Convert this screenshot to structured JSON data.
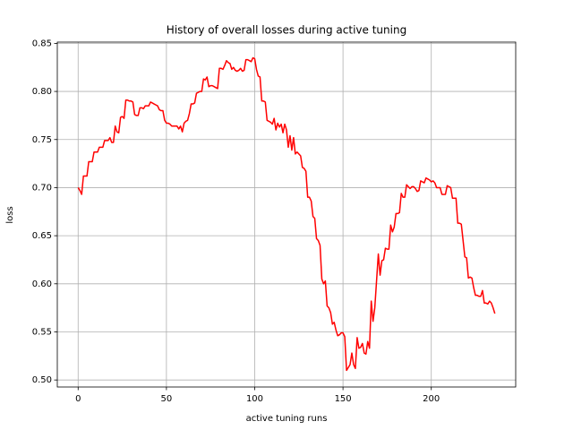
{
  "chart_data": {
    "type": "line",
    "title": "History of overall losses during active tuning",
    "xlabel": "active tuning runs",
    "ylabel": "loss",
    "color": "#ff0000",
    "grid": true,
    "xlim": [
      -11.8,
      247.8
    ],
    "ylim": [
      0.4927,
      0.8513
    ],
    "xticks": [
      0,
      50,
      100,
      150,
      200
    ],
    "yticks": [
      {
        "value": 0.5,
        "label": "0.50"
      },
      0.55,
      {
        "value": 0.6,
        "label": "0.60"
      },
      0.65,
      {
        "value": 0.7,
        "label": "0.70"
      },
      0.75,
      {
        "value": 0.8,
        "label": "0.80"
      },
      0.85
    ],
    "x": [
      0,
      1,
      2,
      3,
      4,
      5,
      6,
      7,
      8,
      9,
      10,
      11,
      12,
      13,
      14,
      15,
      16,
      17,
      18,
      19,
      20,
      21,
      22,
      23,
      24,
      25,
      26,
      27,
      28,
      29,
      30,
      31,
      32,
      33,
      34,
      35,
      36,
      37,
      38,
      39,
      40,
      41,
      42,
      43,
      44,
      45,
      46,
      47,
      48,
      49,
      50,
      51,
      52,
      53,
      54,
      55,
      56,
      57,
      58,
      59,
      60,
      61,
      62,
      63,
      64,
      65,
      66,
      67,
      68,
      69,
      70,
      71,
      72,
      73,
      74,
      75,
      76,
      77,
      78,
      79,
      80,
      81,
      82,
      83,
      84,
      85,
      86,
      87,
      88,
      89,
      90,
      91,
      92,
      93,
      94,
      95,
      96,
      97,
      98,
      99,
      100,
      101,
      102,
      103,
      104,
      105,
      106,
      107,
      108,
      109,
      110,
      111,
      112,
      113,
      114,
      115,
      116,
      117,
      118,
      119,
      120,
      121,
      122,
      123,
      124,
      125,
      126,
      127,
      128,
      129,
      130,
      131,
      132,
      133,
      134,
      135,
      136,
      137,
      138,
      139,
      140,
      141,
      142,
      143,
      144,
      145,
      146,
      147,
      148,
      149,
      150,
      151,
      152,
      153,
      154,
      155,
      156,
      157,
      158,
      159,
      160,
      161,
      162,
      163,
      164,
      165,
      166,
      167,
      168,
      169,
      170,
      171,
      172,
      173,
      174,
      175,
      176,
      177,
      178,
      179,
      180,
      181,
      182,
      183,
      184,
      185,
      186,
      187,
      188,
      189,
      190,
      191,
      192,
      193,
      194,
      195,
      196,
      197,
      198,
      199,
      200,
      201,
      202,
      203,
      204,
      205,
      206,
      207,
      208,
      209,
      210,
      211,
      212,
      213,
      214,
      215,
      216,
      217,
      218,
      219,
      220,
      221,
      222,
      223,
      224,
      225,
      226,
      227,
      228,
      229,
      230,
      231,
      232,
      233,
      234,
      235,
      236
    ],
    "values": [
      0.7,
      0.697,
      0.693,
      0.712,
      0.712,
      0.712,
      0.727,
      0.727,
      0.727,
      0.737,
      0.737,
      0.737,
      0.742,
      0.742,
      0.742,
      0.749,
      0.749,
      0.749,
      0.752,
      0.747,
      0.747,
      0.764,
      0.758,
      0.757,
      0.773,
      0.774,
      0.772,
      0.791,
      0.791,
      0.79,
      0.79,
      0.789,
      0.776,
      0.775,
      0.775,
      0.783,
      0.783,
      0.782,
      0.785,
      0.785,
      0.785,
      0.789,
      0.788,
      0.787,
      0.786,
      0.785,
      0.781,
      0.78,
      0.78,
      0.77,
      0.767,
      0.767,
      0.766,
      0.764,
      0.764,
      0.764,
      0.764,
      0.761,
      0.764,
      0.758,
      0.767,
      0.769,
      0.77,
      0.777,
      0.787,
      0.787,
      0.788,
      0.798,
      0.799,
      0.8,
      0.8,
      0.813,
      0.812,
      0.815,
      0.805,
      0.806,
      0.806,
      0.805,
      0.804,
      0.803,
      0.824,
      0.824,
      0.823,
      0.827,
      0.832,
      0.83,
      0.829,
      0.823,
      0.825,
      0.822,
      0.821,
      0.822,
      0.824,
      0.821,
      0.822,
      0.833,
      0.833,
      0.832,
      0.831,
      0.835,
      0.834,
      0.823,
      0.816,
      0.815,
      0.79,
      0.79,
      0.789,
      0.77,
      0.769,
      0.768,
      0.766,
      0.772,
      0.76,
      0.767,
      0.763,
      0.766,
      0.757,
      0.766,
      0.76,
      0.742,
      0.754,
      0.739,
      0.752,
      0.735,
      0.737,
      0.735,
      0.733,
      0.721,
      0.72,
      0.717,
      0.69,
      0.69,
      0.686,
      0.67,
      0.668,
      0.647,
      0.645,
      0.64,
      0.605,
      0.6,
      0.603,
      0.577,
      0.575,
      0.57,
      0.558,
      0.56,
      0.552,
      0.546,
      0.547,
      0.549,
      0.549,
      0.545,
      0.51,
      0.513,
      0.516,
      0.528,
      0.516,
      0.512,
      0.544,
      0.533,
      0.534,
      0.538,
      0.528,
      0.527,
      0.54,
      0.533,
      0.582,
      0.561,
      0.575,
      0.603,
      0.631,
      0.609,
      0.624,
      0.625,
      0.637,
      0.636,
      0.636,
      0.661,
      0.654,
      0.659,
      0.673,
      0.673,
      0.674,
      0.694,
      0.69,
      0.69,
      0.703,
      0.701,
      0.699,
      0.701,
      0.701,
      0.699,
      0.696,
      0.697,
      0.707,
      0.706,
      0.705,
      0.71,
      0.709,
      0.708,
      0.706,
      0.707,
      0.705,
      0.7,
      0.7,
      0.7,
      0.693,
      0.693,
      0.693,
      0.702,
      0.701,
      0.7,
      0.689,
      0.689,
      0.689,
      0.663,
      0.663,
      0.662,
      0.645,
      0.628,
      0.627,
      0.606,
      0.607,
      0.606,
      0.596,
      0.588,
      0.588,
      0.587,
      0.587,
      0.593,
      0.58,
      0.58,
      0.579,
      0.582,
      0.58,
      0.575,
      0.569
    ]
  }
}
